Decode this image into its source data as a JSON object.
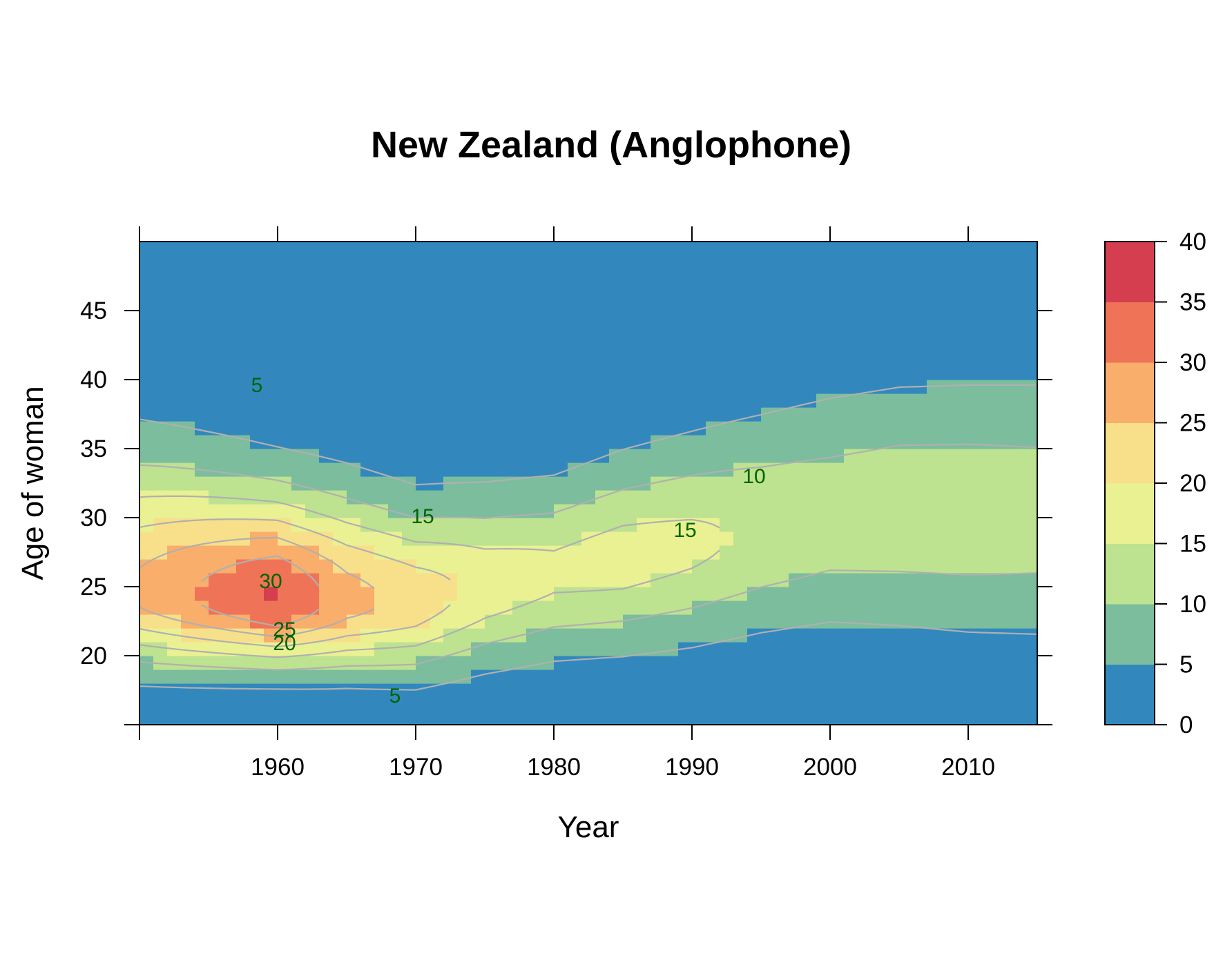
{
  "colors": {
    "bands": [
      "#3288bd",
      "#7bbd9d",
      "#bde290",
      "#eaf193",
      "#f8e08b",
      "#f9ae6b",
      "#ef7457",
      "#d53e4f"
    ],
    "contour_line": "#b0b0b0",
    "contour_label": "#006400"
  },
  "chart_data": {
    "type": "heatmap",
    "title": "New Zealand (Anglophone)",
    "xlabel": "Year",
    "ylabel": "Age of woman",
    "xlim": [
      1950,
      2015
    ],
    "ylim": [
      15,
      50
    ],
    "x_ticks": [
      1960,
      1970,
      1980,
      1990,
      2000,
      2010
    ],
    "y_ticks": [
      20,
      25,
      30,
      35,
      40,
      45
    ],
    "colorkey": {
      "breaks": [
        0,
        5,
        10,
        15,
        20,
        25,
        30,
        35,
        40
      ],
      "labels": [
        "0",
        "5",
        "10",
        "15",
        "20",
        "25",
        "30",
        "35",
        "40"
      ]
    },
    "contour_levels": [
      5,
      10,
      15,
      20,
      25,
      30
    ],
    "contour_labels": [
      {
        "text": "5",
        "x": 1958.5,
        "y": 39.5
      },
      {
        "text": "15",
        "x": 1970.5,
        "y": 30
      },
      {
        "text": "10",
        "x": 1994.5,
        "y": 32.9
      },
      {
        "text": "15",
        "x": 1989.5,
        "y": 29
      },
      {
        "text": "30",
        "x": 1959.5,
        "y": 25.3
      },
      {
        "text": "25",
        "x": 1960.5,
        "y": 21.8
      },
      {
        "text": "20",
        "x": 1960.5,
        "y": 20.8
      },
      {
        "text": "5",
        "x": 1968.5,
        "y": 17
      }
    ],
    "profile_years": [
      1950,
      1960,
      1965,
      1970,
      1975,
      1980,
      1985,
      1990,
      1995,
      2000,
      2005,
      2010,
      2015
    ],
    "profiles": [
      {
        "year": 1950,
        "peak_age": 24.5,
        "peak_rate": 26,
        "spread_low": 3.4,
        "spread_high": 6.4,
        "base": 1.5
      },
      {
        "year": 1960,
        "peak_age": 24.0,
        "peak_rate": 36,
        "spread_low": 3.0,
        "spread_high": 5.2,
        "base": 1.5
      },
      {
        "year": 1965,
        "peak_age": 24.0,
        "peak_rate": 27,
        "spread_low": 3.2,
        "spread_high": 5.0,
        "base": 1.5
      },
      {
        "year": 1970,
        "peak_age": 24.0,
        "peak_rate": 23,
        "spread_low": 3.4,
        "spread_high": 4.4,
        "base": 1.5
      },
      {
        "year": 1975,
        "peak_age": 25.0,
        "peak_rate": 18,
        "spread_low": 3.6,
        "spread_high": 4.3,
        "base": 1.5
      },
      {
        "year": 1980,
        "peak_age": 26.0,
        "peak_rate": 16,
        "spread_low": 3.8,
        "spread_high": 4.2,
        "base": 1.5
      },
      {
        "year": 1985,
        "peak_age": 27.0,
        "peak_rate": 17,
        "spread_low": 4.1,
        "spread_high": 4.6,
        "base": 1.5
      },
      {
        "year": 1990,
        "peak_age": 28.0,
        "peak_rate": 16,
        "spread_low": 4.4,
        "spread_high": 4.9,
        "base": 1.5
      },
      {
        "year": 1995,
        "peak_age": 29.0,
        "peak_rate": 14,
        "spread_low": 4.6,
        "spread_high": 5.3,
        "base": 1.5
      },
      {
        "year": 2000,
        "peak_age": 30.0,
        "peak_rate": 13,
        "spread_low": 4.9,
        "spread_high": 5.6,
        "base": 1.5
      },
      {
        "year": 2005,
        "peak_age": 30.5,
        "peak_rate": 13.5,
        "spread_low": 5.3,
        "spread_high": 5.7,
        "base": 1.5
      },
      {
        "year": 2010,
        "peak_age": 30.5,
        "peak_rate": 13.5,
        "spread_low": 5.6,
        "spread_high": 5.8,
        "base": 1.5
      },
      {
        "year": 2015,
        "peak_age": 30.5,
        "peak_rate": 13,
        "spread_low": 5.8,
        "spread_high": 5.9,
        "base": 1.5
      }
    ]
  }
}
